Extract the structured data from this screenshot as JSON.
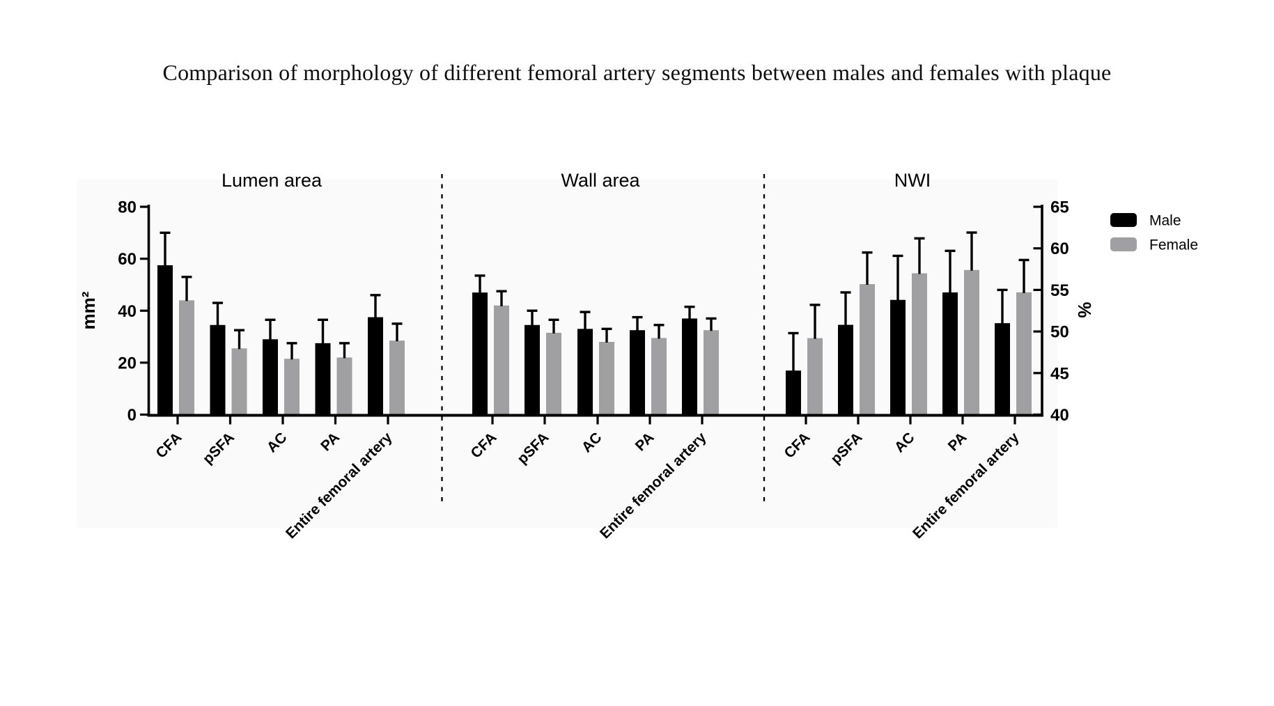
{
  "page": {
    "title": "Comparison of morphology of different femoral artery segments between males and females with plaque"
  },
  "chart_data": {
    "type": "bar",
    "title": "Comparison of morphology of different femoral artery segments between males and females with plaque",
    "categories": [
      "CFA",
      "pSFA",
      "AC",
      "PA",
      "Entire femoral artery"
    ],
    "series_names": [
      "Male",
      "Female"
    ],
    "legend": [
      {
        "name": "Male",
        "color": "#000000"
      },
      {
        "name": "Female",
        "color": "#a0a0a2"
      }
    ],
    "legend_position": "top-right",
    "grid": false,
    "error_bars": "upper only, capped",
    "left_axis": {
      "label": "mm²",
      "range": [
        0,
        80
      ],
      "ticks": [
        0,
        20,
        40,
        60,
        80
      ]
    },
    "right_axis": {
      "label": "%",
      "range": [
        40,
        65
      ],
      "ticks": [
        40,
        45,
        50,
        55,
        60,
        65
      ]
    },
    "panels": [
      {
        "title": "Lumen area",
        "value_axis": "left",
        "series": [
          {
            "name": "Male",
            "values": [
              57.5,
              34.5,
              29.0,
              27.5,
              37.5
            ],
            "errors_upper": [
              12.5,
              8.5,
              7.5,
              9.0,
              8.5
            ]
          },
          {
            "name": "Female",
            "values": [
              44.0,
              25.5,
              21.5,
              22.0,
              28.5
            ],
            "errors_upper": [
              9.0,
              7.0,
              6.0,
              5.5,
              6.5
            ]
          }
        ]
      },
      {
        "title": "Wall area",
        "value_axis": "left",
        "series": [
          {
            "name": "Male",
            "values": [
              47.0,
              34.5,
              33.0,
              32.5,
              37.0
            ],
            "errors_upper": [
              6.5,
              5.5,
              6.5,
              5.0,
              4.5
            ]
          },
          {
            "name": "Female",
            "values": [
              42.0,
              31.5,
              28.0,
              29.5,
              32.5
            ],
            "errors_upper": [
              5.5,
              5.0,
              5.0,
              5.0,
              4.5
            ]
          }
        ]
      },
      {
        "title": "NWI",
        "value_axis": "right",
        "series": [
          {
            "name": "Male",
            "values": [
              45.3,
              50.8,
              53.8,
              54.7,
              51.0
            ],
            "errors_upper": [
              4.5,
              3.9,
              5.3,
              5.0,
              4.0
            ]
          },
          {
            "name": "Female",
            "values": [
              49.2,
              55.7,
              57.0,
              57.4,
              54.7
            ],
            "errors_upper": [
              4.0,
              3.8,
              4.2,
              4.5,
              3.9
            ]
          }
        ]
      }
    ]
  }
}
